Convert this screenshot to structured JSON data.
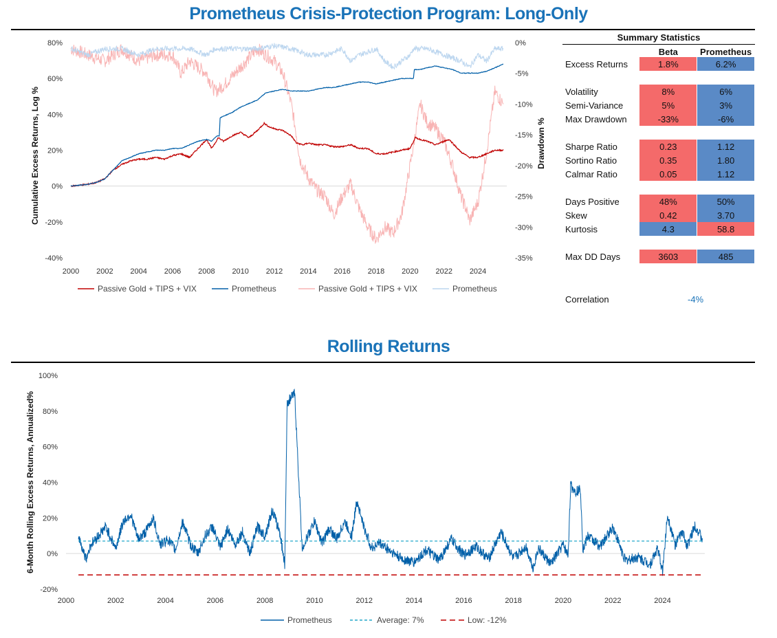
{
  "title_main": "Prometheus Crisis-Protection Program: Long-Only",
  "title_rolling": "Rolling Returns",
  "summary": {
    "title": "Summary Statistics",
    "col_beta": "Beta",
    "col_prom": "Prometheus",
    "groups": [
      [
        {
          "label": "Excess Returns",
          "beta": "1.8%",
          "prom": "6.2%",
          "beta_color": "#f46a6a",
          "prom_color": "#5a8ac6"
        }
      ],
      [
        {
          "label": "Volatility",
          "beta": "8%",
          "prom": "6%",
          "beta_color": "#f46a6a",
          "prom_color": "#5a8ac6"
        },
        {
          "label": "Semi-Variance",
          "beta": "5%",
          "prom": "3%",
          "beta_color": "#f46a6a",
          "prom_color": "#5a8ac6"
        },
        {
          "label": "Max Drawdown",
          "beta": "-33%",
          "prom": "-6%",
          "beta_color": "#f46a6a",
          "prom_color": "#5a8ac6"
        }
      ],
      [
        {
          "label": "Sharpe Ratio",
          "beta": "0.23",
          "prom": "1.12",
          "beta_color": "#f46a6a",
          "prom_color": "#5a8ac6"
        },
        {
          "label": "Sortino Ratio",
          "beta": "0.35",
          "prom": "1.80",
          "beta_color": "#f46a6a",
          "prom_color": "#5a8ac6"
        },
        {
          "label": "Calmar Ratio",
          "beta": "0.05",
          "prom": "1.12",
          "beta_color": "#f46a6a",
          "prom_color": "#5a8ac6"
        }
      ],
      [
        {
          "label": "Days Positive",
          "beta": "48%",
          "prom": "50%",
          "beta_color": "#f46a6a",
          "prom_color": "#5a8ac6"
        },
        {
          "label": "Skew",
          "beta": "0.42",
          "prom": "3.70",
          "beta_color": "#f46a6a",
          "prom_color": "#5a8ac6"
        },
        {
          "label": "Kurtosis",
          "beta": "4.3",
          "prom": "58.8",
          "beta_color": "#5a8ac6",
          "prom_color": "#f46a6a"
        }
      ],
      [
        {
          "label": "Max DD Days",
          "beta": "3603",
          "prom": "485",
          "beta_color": "#f46a6a",
          "prom_color": "#5a8ac6"
        }
      ]
    ],
    "correlation_label": "Correlation",
    "correlation_value": "-4%"
  },
  "colors": {
    "red": "#c00000",
    "blue": "#005fa8",
    "pink": "#f8b4b4",
    "lightblue": "#bcd6ef",
    "avg": "#22a7c9",
    "low": "#c00000"
  },
  "chart_data": [
    {
      "type": "line",
      "title": "Prometheus Crisis-Protection Program: Long-Only",
      "xlabel": "",
      "ylabel": "Cumulative Excess Returns, Log %",
      "y2label": "Drawdown %",
      "xlim": [
        2000,
        2025.7
      ],
      "ylim": [
        -40,
        80
      ],
      "y2lim": [
        -35,
        0
      ],
      "xticks": [
        "2000",
        "2002",
        "2004",
        "2006",
        "2008",
        "2010",
        "2012",
        "2014",
        "2016",
        "2018",
        "2020",
        "2022",
        "2024"
      ],
      "yticks": [
        "80%",
        "60%",
        "40%",
        "20%",
        "0%",
        "-20%",
        "-40%"
      ],
      "y2ticks": [
        "0%",
        "-5%",
        "-10%",
        "-15%",
        "-20%",
        "-25%",
        "-30%",
        "-35%"
      ],
      "legend": [
        "Passive Gold + TIPS + VIX",
        "Prometheus",
        "Passive Gold + TIPS + VIX",
        "Prometheus"
      ],
      "series": [
        {
          "name": "Passive Gold + TIPS + VIX",
          "axis": "left",
          "color": "#c00000",
          "x": [
            2000,
            2000.5,
            2001,
            2001.5,
            2002,
            2002.5,
            2003,
            2003.5,
            2004,
            2004.5,
            2005,
            2005.5,
            2006,
            2006.5,
            2007,
            2007.5,
            2008,
            2008.3,
            2008.7,
            2009,
            2009.5,
            2010,
            2010.5,
            2011,
            2011.4,
            2011.7,
            2012,
            2012.5,
            2013,
            2013.3,
            2013.7,
            2014,
            2014.5,
            2015,
            2015.5,
            2016,
            2016.5,
            2017,
            2017.5,
            2018,
            2018.5,
            2019,
            2019.5,
            2020,
            2020.3,
            2020.6,
            2021,
            2021.5,
            2022,
            2022.3,
            2022.7,
            2023,
            2023.5,
            2024,
            2024.5,
            2025,
            2025.5
          ],
          "y": [
            0,
            0.5,
            1,
            2,
            4,
            9,
            12,
            14,
            15,
            15,
            16,
            15,
            17,
            18,
            16,
            21,
            26,
            21,
            27,
            25,
            28,
            30,
            27,
            31,
            35,
            33,
            32,
            31,
            28,
            24,
            23,
            24,
            23,
            23,
            22,
            22,
            23,
            21,
            21,
            18,
            18,
            19,
            20,
            21,
            27,
            26,
            25,
            23,
            25,
            26,
            22,
            19,
            16,
            16,
            18,
            20,
            20
          ]
        },
        {
          "name": "Prometheus",
          "axis": "left",
          "color": "#005fa8",
          "x": [
            2000,
            2000.5,
            2001,
            2001.5,
            2002,
            2002.5,
            2003,
            2003.5,
            2004,
            2004.5,
            2005,
            2005.5,
            2006,
            2006.5,
            2007,
            2007.5,
            2008,
            2008.3,
            2008.6,
            2008.75,
            2008.8,
            2009,
            2009.5,
            2010,
            2010.5,
            2011,
            2011.5,
            2012,
            2012.5,
            2013,
            2013.5,
            2014,
            2014.5,
            2015,
            2015.5,
            2016,
            2016.5,
            2017,
            2017.5,
            2018,
            2018.5,
            2019,
            2019.5,
            2020,
            2020.2,
            2020.25,
            2020.6,
            2021,
            2021.5,
            2022,
            2022.5,
            2023,
            2023.5,
            2024,
            2024.5,
            2025,
            2025.5
          ],
          "y": [
            0,
            0.5,
            1,
            2,
            4,
            9,
            14,
            16,
            18,
            19,
            20,
            20,
            21,
            21,
            23,
            25,
            26,
            25,
            28,
            28,
            38,
            39,
            41,
            44,
            46,
            48,
            52,
            53,
            54,
            53,
            53,
            53,
            54,
            55,
            55,
            56,
            57,
            58,
            58,
            57,
            58,
            59,
            60,
            60,
            60,
            65,
            65,
            66,
            67,
            66,
            65,
            63,
            63,
            63,
            64,
            66,
            68
          ]
        },
        {
          "name": "Passive Gold + TIPS + VIX (Drawdown)",
          "axis": "right",
          "color": "#f8b4b4",
          "x": [
            2000,
            2001,
            2002,
            2003,
            2004,
            2005,
            2006,
            2006.5,
            2007,
            2008,
            2008.5,
            2009,
            2010,
            2011,
            2011.5,
            2012,
            2012.5,
            2013,
            2013.3,
            2013.5,
            2014,
            2014.5,
            2015,
            2015.5,
            2016,
            2016.5,
            2017,
            2017.5,
            2018,
            2018.5,
            2019,
            2019.5,
            2020,
            2020.3,
            2020.6,
            2021,
            2021.5,
            2022,
            2022.5,
            2023,
            2023.3,
            2023.5,
            2024,
            2024.5,
            2025,
            2025.5
          ],
          "y": [
            -1,
            -2,
            -3,
            -1,
            -3,
            -2,
            -2,
            -5,
            -3,
            -5,
            -8,
            -7,
            -4,
            -1,
            -2,
            -3,
            -5,
            -10,
            -15,
            -19,
            -22,
            -24,
            -25,
            -28,
            -25,
            -23,
            -27,
            -30,
            -32,
            -30,
            -31,
            -28,
            -20,
            -15,
            -10,
            -13,
            -14,
            -16,
            -20,
            -25,
            -27,
            -29,
            -26,
            -18,
            -8,
            -10
          ]
        },
        {
          "name": "Prometheus (Drawdown)",
          "axis": "right",
          "color": "#bcd6ef",
          "x": [
            2000,
            2001,
            2002,
            2003,
            2004,
            2005,
            2006,
            2007,
            2008,
            2008.5,
            2009,
            2010,
            2011,
            2012,
            2013,
            2014,
            2015,
            2016,
            2016.5,
            2017,
            2018,
            2018.5,
            2019,
            2020,
            2020.2,
            2021,
            2022,
            2023,
            2023.5,
            2024,
            2024.5,
            2025,
            2025.5
          ],
          "y": [
            -1,
            -2,
            -1,
            -1,
            -2,
            -1,
            -1,
            -1,
            -2,
            -1,
            -1,
            -1,
            -1,
            -0.5,
            -1,
            -2,
            -2,
            -1,
            -3,
            -2,
            -1,
            -3,
            -4,
            -2,
            -1,
            -1,
            -2,
            -3,
            -4,
            -2,
            -3,
            -1,
            -1
          ]
        }
      ]
    },
    {
      "type": "line",
      "title": "Rolling Returns",
      "xlabel": "",
      "ylabel": "6-Month Rolling Excess Returns, Annualized%",
      "xlim": [
        2000,
        2025.7
      ],
      "ylim": [
        -20,
        100
      ],
      "xticks": [
        "2000",
        "2002",
        "2004",
        "2006",
        "2008",
        "2010",
        "2012",
        "2014",
        "2016",
        "2018",
        "2020",
        "2022",
        "2024"
      ],
      "yticks": [
        "100%",
        "80%",
        "60%",
        "40%",
        "20%",
        "0%",
        "-20%"
      ],
      "legend": [
        "Prometheus",
        "Average: 7%",
        "Low: -12%"
      ],
      "average": 7,
      "low": -12,
      "series": [
        {
          "name": "Prometheus",
          "color": "#005fa8",
          "x": [
            2000.5,
            2000.8,
            2001,
            2001.3,
            2001.6,
            2002,
            2002.3,
            2002.6,
            2002.9,
            2003.2,
            2003.5,
            2003.8,
            2004.1,
            2004.4,
            2004.7,
            2005,
            2005.3,
            2005.6,
            2005.9,
            2006.2,
            2006.5,
            2006.8,
            2007.1,
            2007.4,
            2007.7,
            2008,
            2008.3,
            2008.6,
            2008.8,
            2008.9,
            2009.1,
            2009.2,
            2009.3,
            2009.5,
            2009.8,
            2010,
            2010.3,
            2010.6,
            2010.9,
            2011.2,
            2011.5,
            2011.7,
            2012,
            2012.3,
            2012.6,
            2013,
            2013.5,
            2014,
            2014.5,
            2015,
            2015.5,
            2016,
            2016.5,
            2017,
            2017.5,
            2018,
            2018.5,
            2018.8,
            2019,
            2019.5,
            2020,
            2020.2,
            2020.3,
            2020.5,
            2020.7,
            2020.8,
            2021,
            2021.5,
            2022,
            2022.5,
            2023,
            2023.5,
            2023.8,
            2024,
            2024.2,
            2024.5,
            2024.8,
            2025,
            2025.3,
            2025.6
          ],
          "y": [
            10,
            -3,
            5,
            10,
            15,
            3,
            18,
            22,
            8,
            12,
            20,
            5,
            8,
            2,
            18,
            5,
            0,
            10,
            15,
            3,
            14,
            5,
            12,
            0,
            15,
            10,
            24,
            12,
            -6,
            85,
            88,
            90,
            60,
            3,
            12,
            18,
            6,
            14,
            8,
            18,
            10,
            30,
            14,
            3,
            6,
            2,
            -3,
            -5,
            2,
            -4,
            8,
            -1,
            4,
            -3,
            12,
            -3,
            4,
            -8,
            3,
            -6,
            5,
            -1,
            38,
            35,
            36,
            2,
            10,
            4,
            15,
            -4,
            -2,
            -6,
            3,
            -10,
            22,
            5,
            12,
            4,
            16,
            8
          ]
        }
      ]
    }
  ]
}
